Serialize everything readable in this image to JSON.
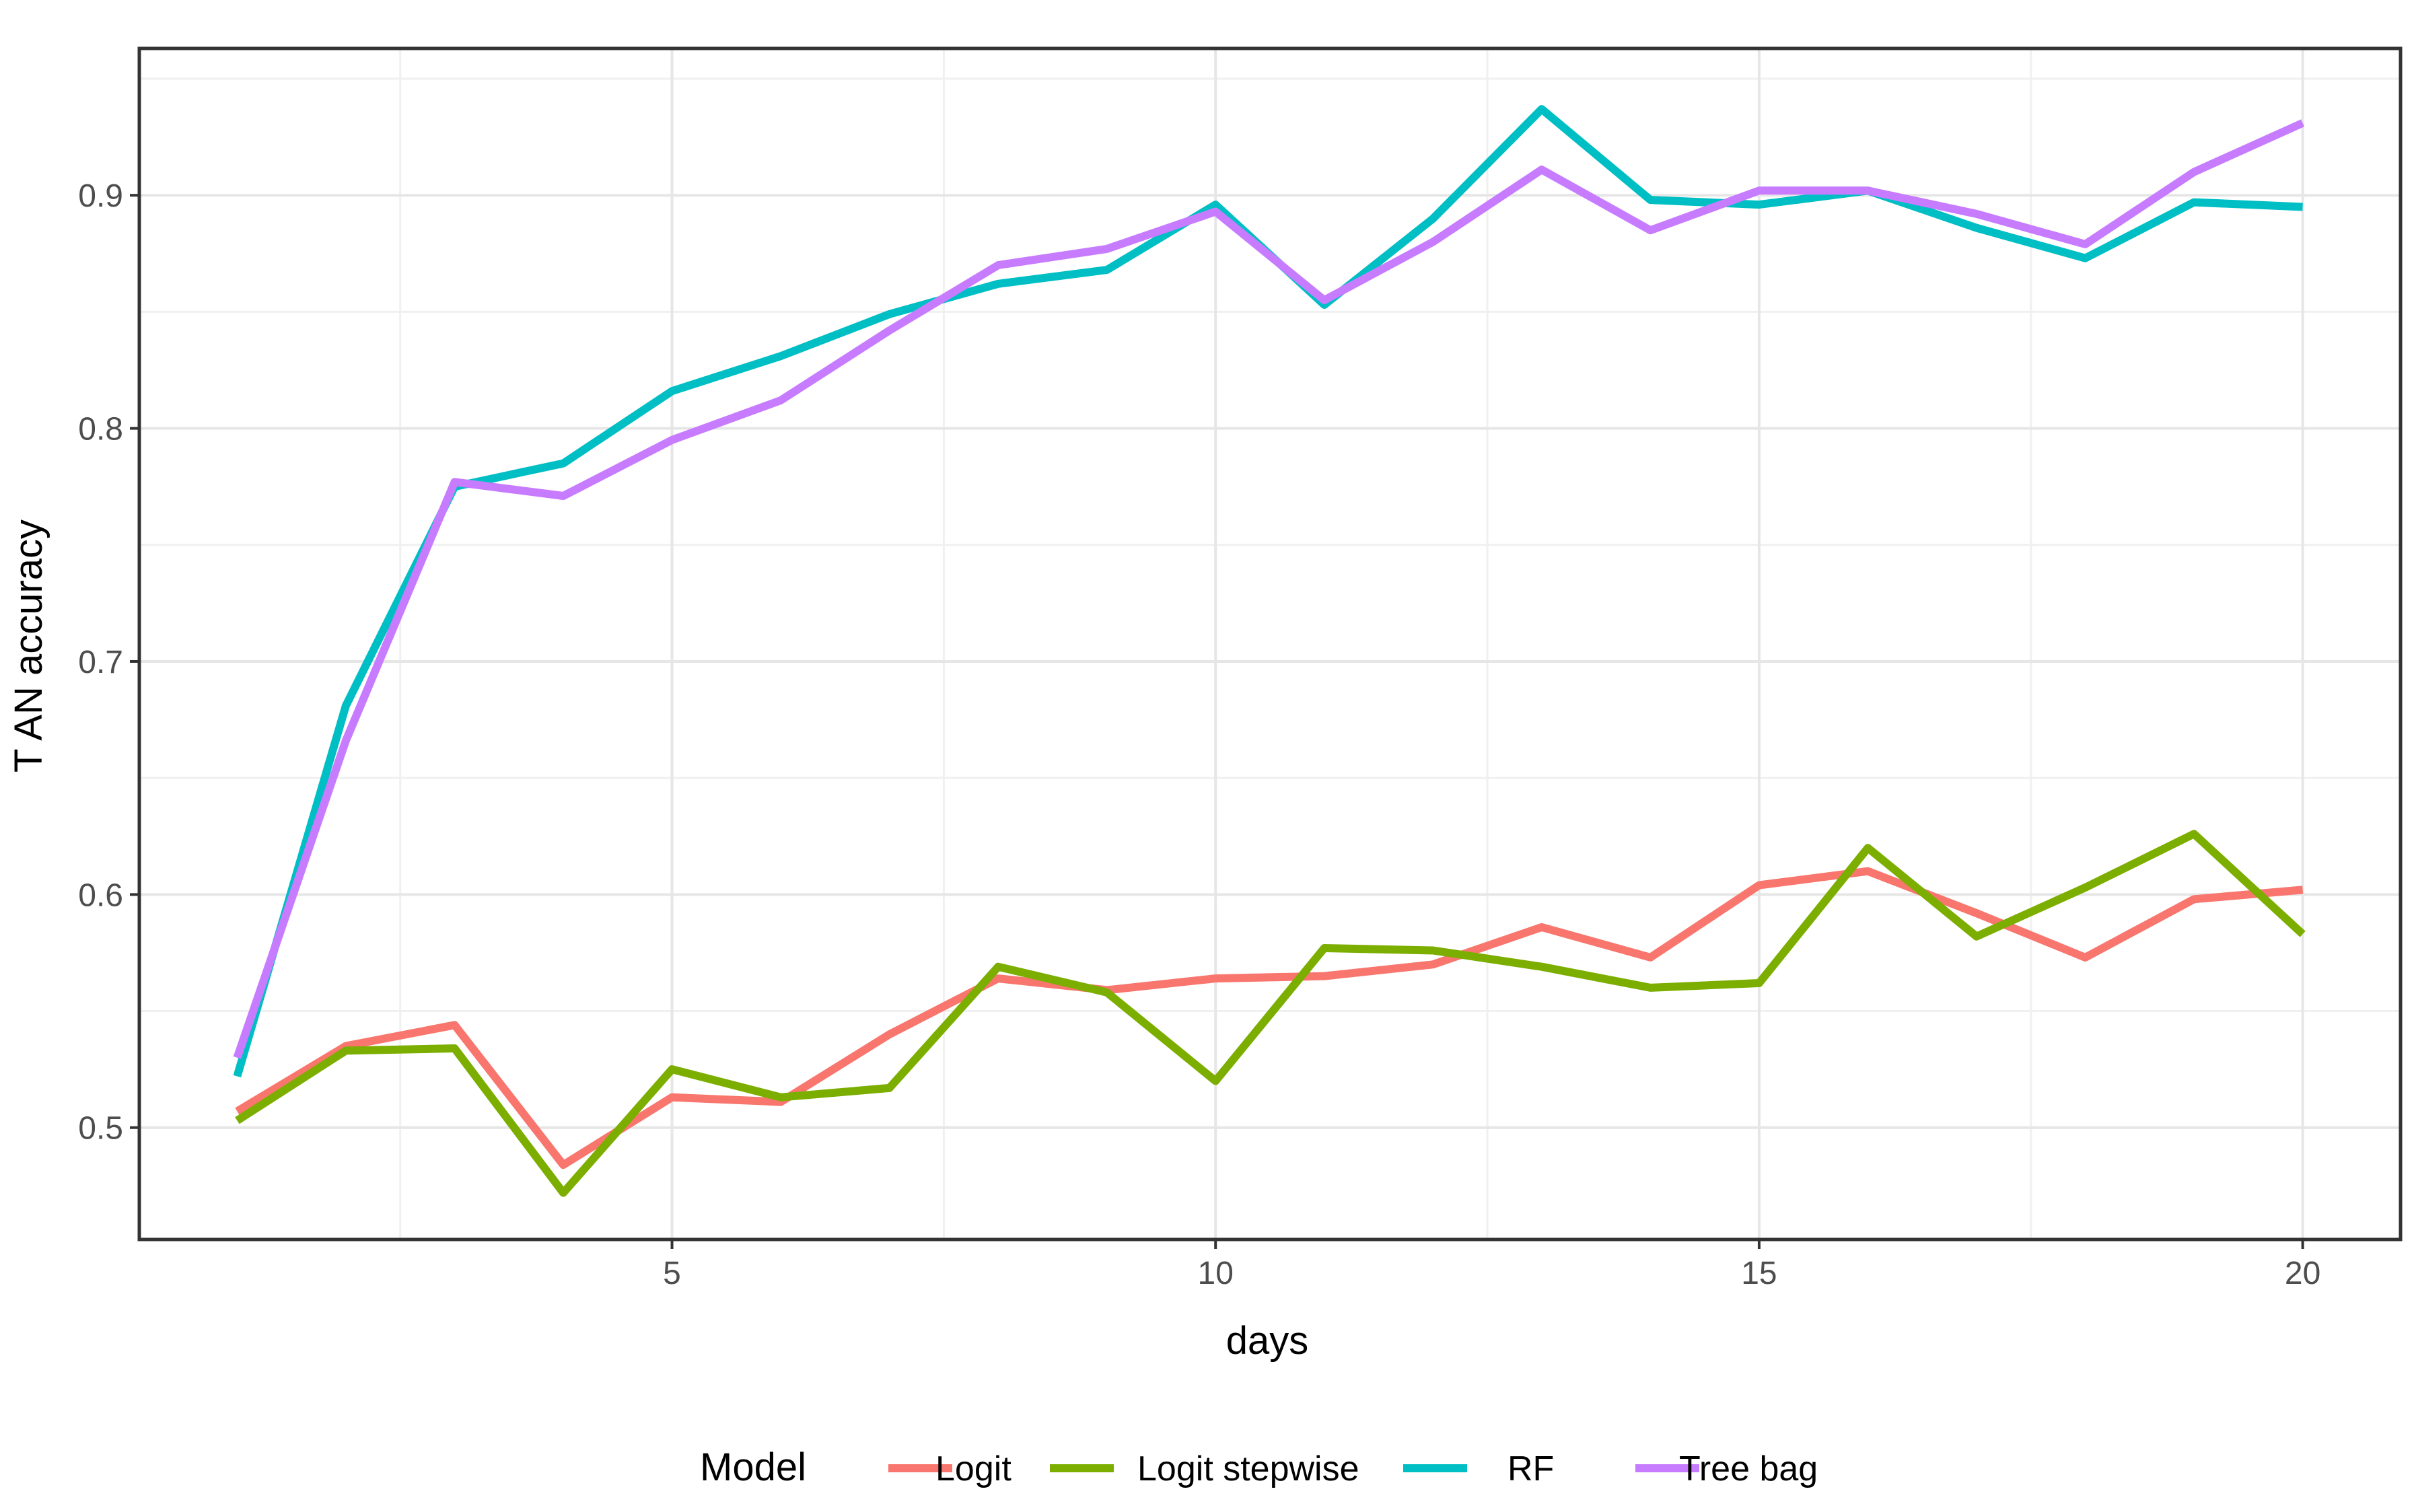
{
  "chart_data": {
    "type": "line",
    "title": "",
    "xlabel": "days",
    "ylabel": "T AN accuracy",
    "xlim": [
      0.1,
      20.9
    ],
    "ylim": [
      0.452,
      0.963
    ],
    "x_ticks": [
      5,
      10,
      15,
      20
    ],
    "y_ticks": [
      0.5,
      0.6,
      0.7,
      0.8,
      0.9
    ],
    "x_tick_labels": [
      "5",
      "10",
      "15",
      "20"
    ],
    "y_tick_labels": [
      "0.5",
      "0.6",
      "0.7",
      "0.8",
      "0.9"
    ],
    "grid": true,
    "legend": {
      "title": "Model",
      "position": "bottom"
    },
    "x": [
      1,
      2,
      3,
      4,
      5,
      6,
      7,
      8,
      9,
      10,
      11,
      12,
      13,
      14,
      15,
      16,
      17,
      18,
      19,
      20
    ],
    "series": [
      {
        "name": "Logit",
        "color": "#F8766D",
        "values": [
          0.507,
          0.535,
          0.544,
          0.484,
          0.513,
          0.511,
          0.54,
          0.564,
          0.559,
          0.564,
          0.565,
          0.57,
          0.586,
          0.573,
          0.604,
          0.61,
          0.592,
          0.573,
          0.598,
          0.602
        ]
      },
      {
        "name": "Logit stepwise",
        "color": "#7CAE00",
        "values": [
          0.503,
          0.533,
          0.534,
          0.472,
          0.525,
          0.513,
          0.517,
          0.569,
          0.558,
          0.52,
          0.577,
          0.576,
          0.569,
          0.56,
          0.562,
          0.62,
          0.582,
          0.603,
          0.626,
          0.583
        ]
      },
      {
        "name": "RF",
        "color": "#00BFC4",
        "values": [
          0.522,
          0.681,
          0.775,
          0.785,
          0.816,
          0.831,
          0.849,
          0.862,
          0.868,
          0.896,
          0.853,
          0.89,
          0.937,
          0.898,
          0.896,
          0.902,
          0.886,
          0.873,
          0.897,
          0.895
        ]
      },
      {
        "name": "Tree bag",
        "color": "#C77CFF",
        "values": [
          0.53,
          0.666,
          0.777,
          0.771,
          0.795,
          0.812,
          0.842,
          0.87,
          0.877,
          0.893,
          0.855,
          0.88,
          0.911,
          0.885,
          0.902,
          0.902,
          0.892,
          0.879,
          0.91,
          0.931
        ]
      }
    ]
  }
}
